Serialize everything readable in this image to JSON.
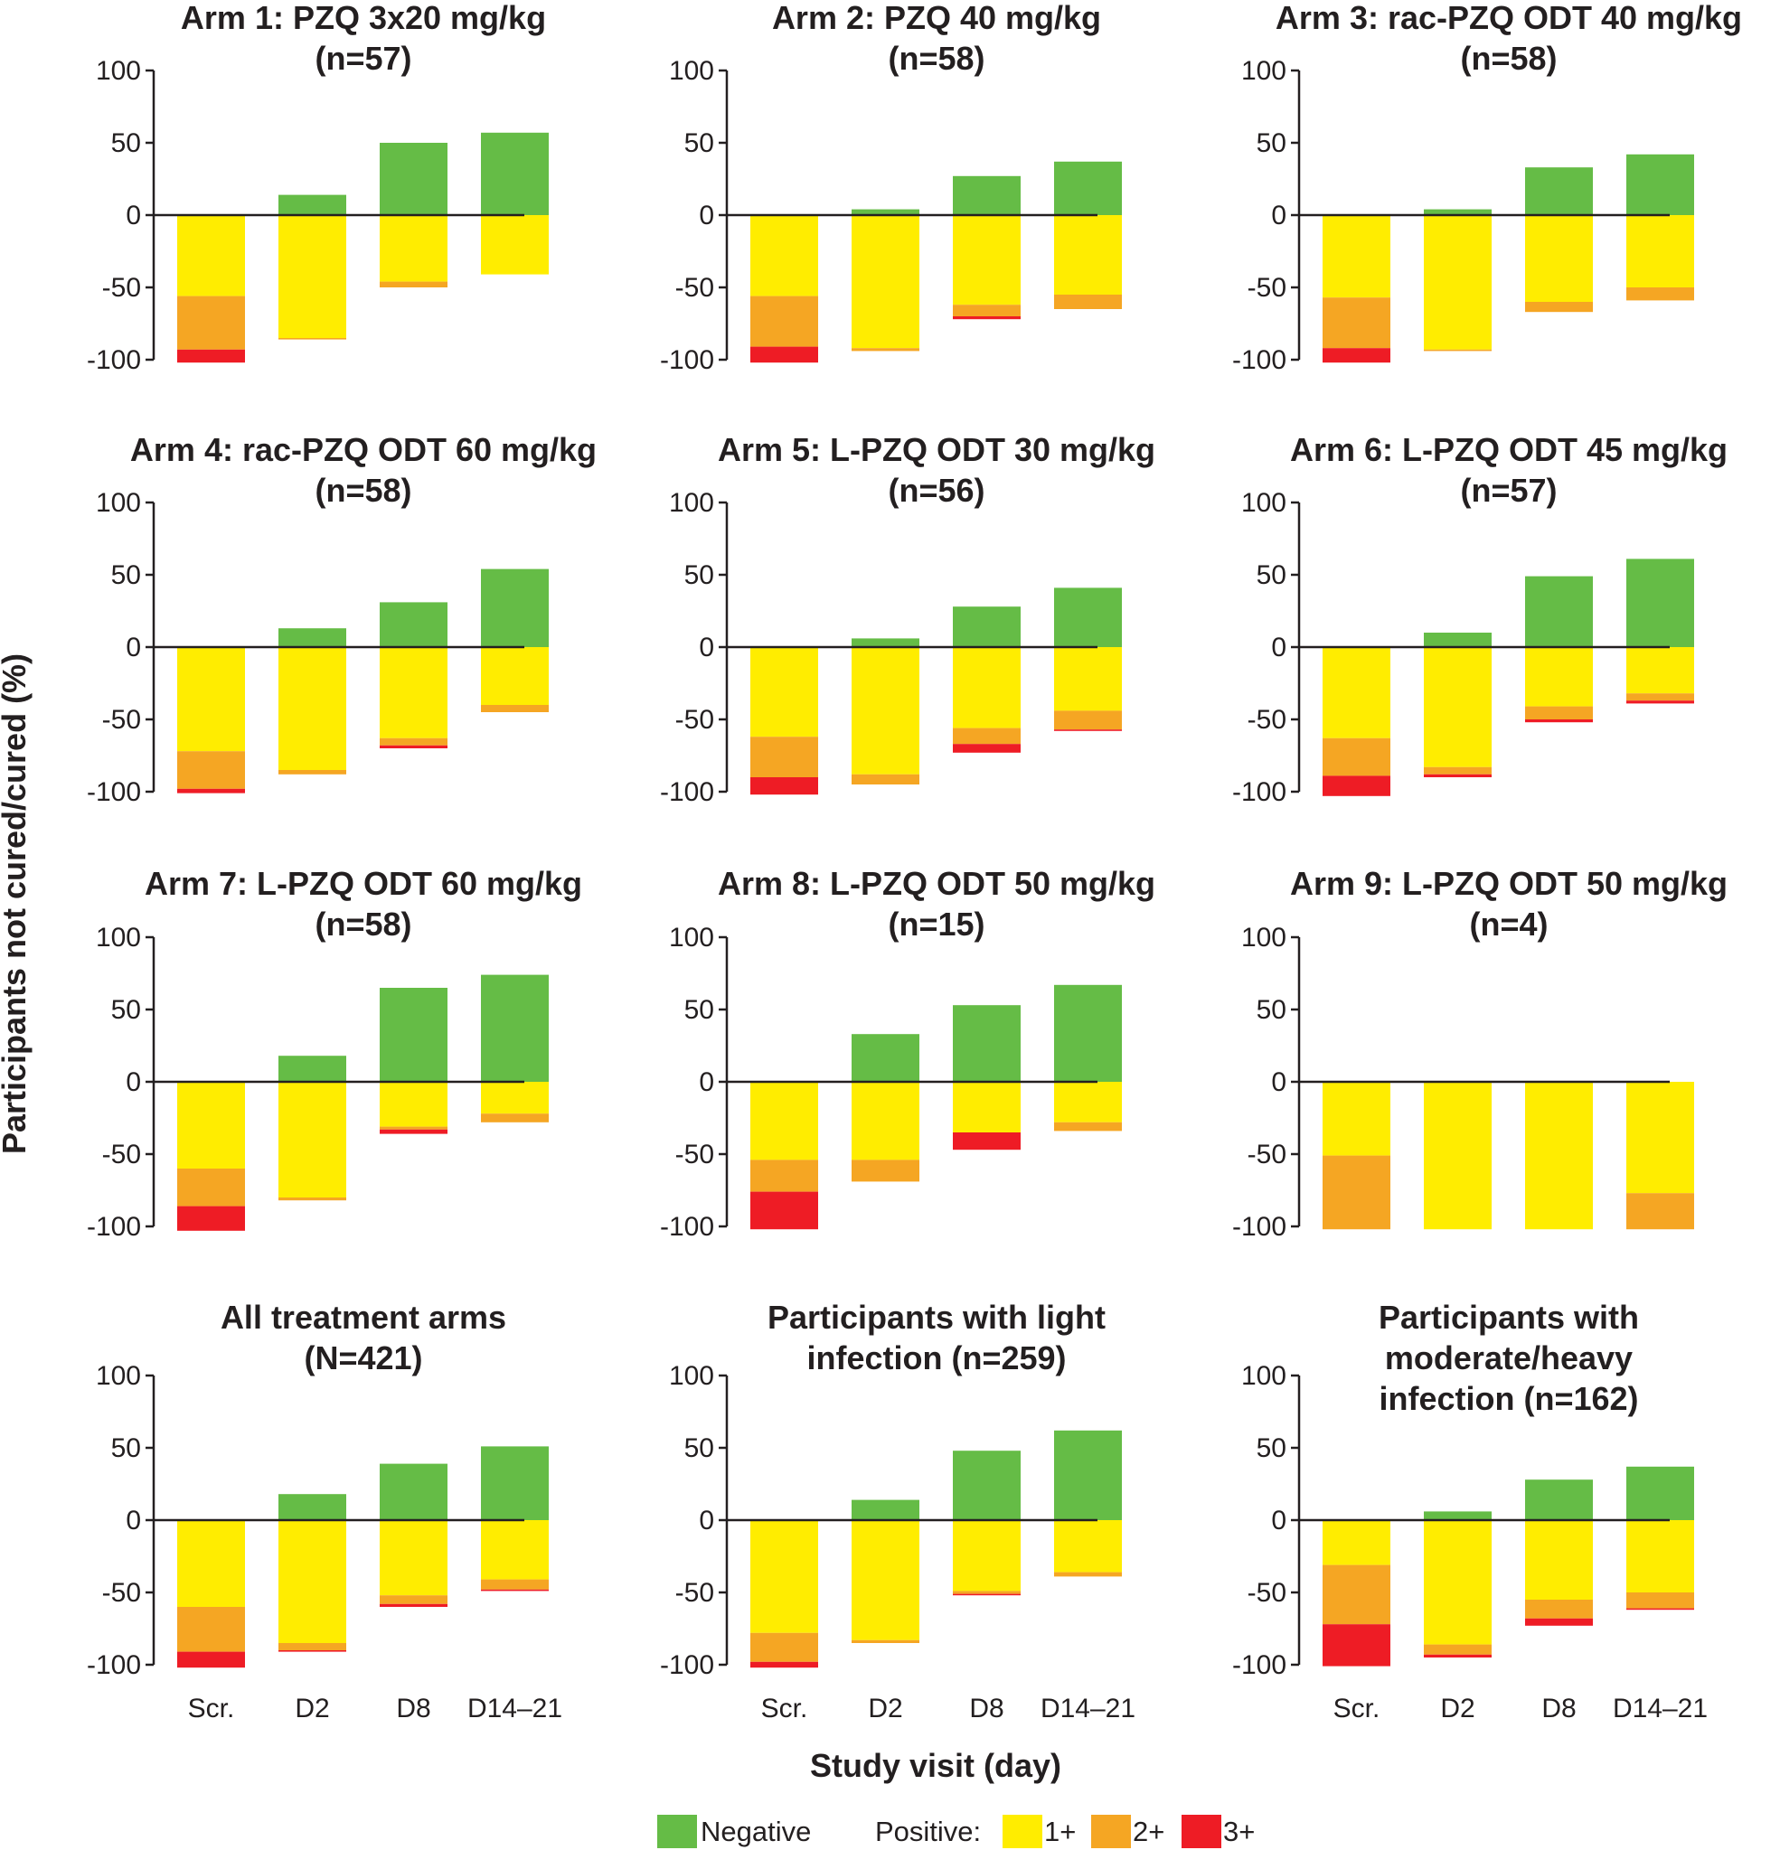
{
  "chart_data": {
    "type": "bar",
    "layout": "3x4 small multiples, diverging stacked bars",
    "ylabel": "Participants not cured/cured (%)",
    "xlabel": "Study visit (day)",
    "categories": [
      "Scr.",
      "D2",
      "D8",
      "D14–21"
    ],
    "yticks": [
      100,
      50,
      0,
      -50,
      -100
    ],
    "ylim": [
      -100,
      100
    ],
    "colors": {
      "negative": "#65bc46",
      "plus1": "#ffed00",
      "plus2": "#f5a623",
      "plus3": "#ee1c25"
    },
    "legend": {
      "negative_label": "Negative",
      "positive_prefix": "Positive:",
      "plus1_label": "1+",
      "plus2_label": "2+",
      "plus3_label": "3+",
      "placement": "bottom-center"
    },
    "panels": [
      {
        "title": [
          "Arm 1: PZQ 3x20 mg/kg",
          "(n=57)"
        ],
        "series": {
          "negative": [
            0,
            14,
            50,
            57
          ],
          "plus1": [
            56,
            85,
            46,
            41
          ],
          "plus2": [
            37,
            1,
            4,
            0
          ],
          "plus3": [
            9,
            0,
            0,
            0
          ]
        }
      },
      {
        "title": [
          "Arm 2: PZQ 40 mg/kg",
          "(n=58)"
        ],
        "series": {
          "negative": [
            0,
            4,
            27,
            37
          ],
          "plus1": [
            56,
            92,
            62,
            55
          ],
          "plus2": [
            35,
            2,
            8,
            10
          ],
          "plus3": [
            11,
            0,
            2,
            0
          ]
        }
      },
      {
        "title": [
          "Arm 3: rac-PZQ ODT 40 mg/kg",
          "(n=58)"
        ],
        "series": {
          "negative": [
            0,
            4,
            33,
            42
          ],
          "plus1": [
            57,
            93,
            60,
            50
          ],
          "plus2": [
            35,
            1,
            7,
            9
          ],
          "plus3": [
            10,
            0,
            0,
            0
          ]
        }
      },
      {
        "title": [
          "Arm 4: rac-PZQ ODT 60 mg/kg",
          "(n=58)"
        ],
        "series": {
          "negative": [
            0,
            13,
            31,
            54
          ],
          "plus1": [
            72,
            85,
            63,
            40
          ],
          "plus2": [
            26,
            3,
            5,
            5
          ],
          "plus3": [
            3,
            0,
            2,
            0
          ]
        }
      },
      {
        "title": [
          "Arm 5: L-PZQ ODT 30 mg/kg",
          "(n=56)"
        ],
        "series": {
          "negative": [
            0,
            6,
            28,
            41
          ],
          "plus1": [
            62,
            88,
            56,
            44
          ],
          "plus2": [
            28,
            7,
            11,
            13
          ],
          "plus3": [
            12,
            0,
            6,
            1
          ]
        }
      },
      {
        "title": [
          "Arm 6: L-PZQ ODT 45 mg/kg",
          "(n=57)"
        ],
        "series": {
          "negative": [
            0,
            10,
            49,
            61
          ],
          "plus1": [
            63,
            83,
            41,
            32
          ],
          "plus2": [
            26,
            5,
            9,
            5
          ],
          "plus3": [
            14,
            2,
            2,
            2
          ]
        }
      },
      {
        "title": [
          "Arm 7: L-PZQ ODT 60 mg/kg",
          "(n=58)"
        ],
        "series": {
          "negative": [
            0,
            18,
            65,
            74
          ],
          "plus1": [
            60,
            80,
            31,
            22
          ],
          "plus2": [
            26,
            2,
            2,
            6
          ],
          "plus3": [
            17,
            0,
            3,
            0
          ]
        }
      },
      {
        "title": [
          "Arm 8: L-PZQ ODT 50 mg/kg",
          "(n=15)"
        ],
        "series": {
          "negative": [
            0,
            33,
            53,
            67
          ],
          "plus1": [
            54,
            54,
            35,
            28
          ],
          "plus2": [
            22,
            15,
            0,
            6
          ],
          "plus3": [
            26,
            0,
            12,
            0
          ]
        }
      },
      {
        "title": [
          "Arm 9: L-PZQ ODT 50 mg/kg",
          "(n=4)"
        ],
        "series": {
          "negative": [
            0,
            0,
            0,
            0
          ],
          "plus1": [
            51,
            102,
            102,
            77
          ],
          "plus2": [
            51,
            0,
            0,
            25
          ],
          "plus3": [
            0,
            0,
            0,
            0
          ]
        }
      },
      {
        "title": [
          "All treatment arms",
          "(N=421)"
        ],
        "series": {
          "negative": [
            0,
            18,
            39,
            51
          ],
          "plus1": [
            60,
            85,
            52,
            41
          ],
          "plus2": [
            31,
            5,
            6,
            7
          ],
          "plus3": [
            11,
            1,
            2,
            1
          ]
        }
      },
      {
        "title": [
          "Participants with light",
          "infection (n=259)"
        ],
        "series": {
          "negative": [
            0,
            14,
            48,
            62
          ],
          "plus1": [
            78,
            83,
            49,
            36
          ],
          "plus2": [
            20,
            2,
            2,
            3
          ],
          "plus3": [
            4,
            0,
            1,
            0
          ]
        }
      },
      {
        "title": [
          "Participants with",
          "moderate/heavy",
          "infection (n=162)"
        ],
        "series": {
          "negative": [
            0,
            6,
            28,
            37
          ],
          "plus1": [
            31,
            86,
            55,
            50
          ],
          "plus2": [
            41,
            7,
            13,
            11
          ],
          "plus3": [
            29,
            2,
            5,
            1
          ]
        }
      }
    ]
  }
}
